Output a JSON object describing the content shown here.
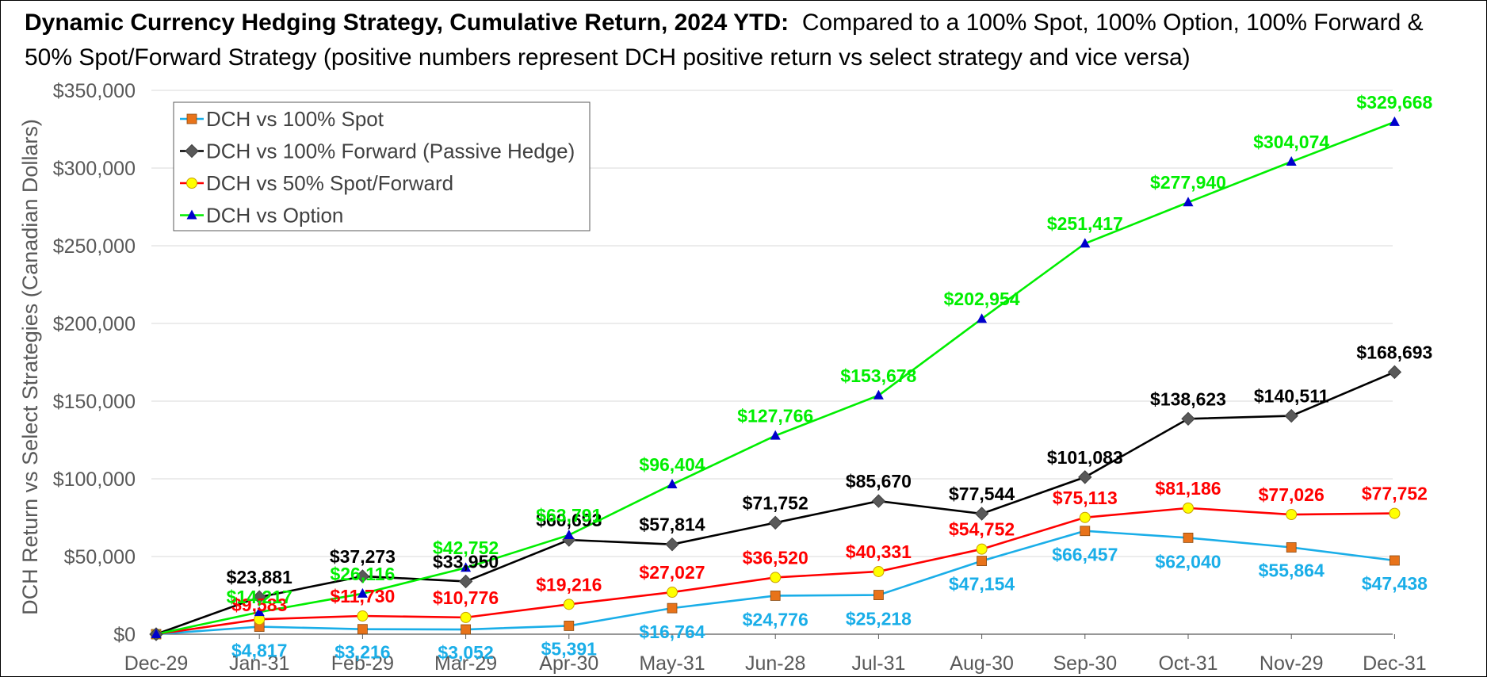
{
  "title": {
    "bold": "Dynamic Currency Hedging Strategy, Cumulative Return, 2024 YTD:",
    "rest": "Compared to a 100% Spot, 100% Option, 100% Forward & 50% Spot/Forward Strategy (positive numbers represent DCH positive return vs select strategy and vice versa)"
  },
  "chart_data": {
    "type": "line",
    "title": "Dynamic Currency Hedging Strategy, Cumulative Return, 2024 YTD: Compared to a 100% Spot, 100% Option, 100% Forward & 50% Spot/Forward Strategy (positive numbers represent DCH positive return vs select strategy and vice versa)",
    "xlabel": "",
    "ylabel": "DCH Return vs Select Strategies (Canadian Dollars)",
    "categories": [
      "Dec-29",
      "Jan-31",
      "Feb-29",
      "Mar-29",
      "Apr-30",
      "May-31",
      "Jun-28",
      "Jul-31",
      "Aug-30",
      "Sep-30",
      "Oct-31",
      "Nov-29",
      "Dec-31"
    ],
    "ylim": [
      0,
      350000
    ],
    "yticks": [
      0,
      50000,
      100000,
      150000,
      200000,
      250000,
      300000,
      350000
    ],
    "ytick_labels": [
      "$0",
      "$50,000",
      "$100,000",
      "$150,000",
      "$200,000",
      "$250,000",
      "$300,000",
      "$350,000"
    ],
    "grid": "horizontal",
    "legend_position": "top-left",
    "series": [
      {
        "name": "DCH vs 100% Spot",
        "color": "#1AAEE8",
        "marker": "square",
        "marker_color": "#E8731A",
        "label_color": "#1AAEE8",
        "values": [
          0,
          4817,
          3216,
          3052,
          5391,
          16764,
          24776,
          25218,
          47154,
          66457,
          62040,
          55864,
          47438
        ],
        "labels": [
          "",
          "$4,817",
          "$3,216",
          "$3,052",
          "$5,391",
          "$16,764",
          "$24,776",
          "$25,218",
          "$47,154",
          "$66,457",
          "$62,040",
          "$55,864",
          "$47,438"
        ]
      },
      {
        "name": "DCH vs 100% Forward (Passive Hedge)",
        "color": "#000000",
        "marker": "diamond",
        "marker_color": "#595959",
        "label_color": "#000000",
        "values": [
          0,
          23881,
          37273,
          33950,
          60693,
          57814,
          71752,
          85670,
          77544,
          101083,
          138623,
          140511,
          168693
        ],
        "labels": [
          "",
          "$23,881",
          "$37,273",
          "$33,950",
          "$60,693",
          "$57,814",
          "$71,752",
          "$85,670",
          "$77,544",
          "$101,083",
          "$138,623",
          "$140,511",
          "$168,693"
        ]
      },
      {
        "name": "DCH vs 50% Spot/Forward",
        "color": "#FF0000",
        "marker": "circle",
        "marker_color": "#FFFF00",
        "label_color": "#FF0000",
        "values": [
          0,
          9583,
          11730,
          10776,
          19216,
          27027,
          36520,
          40331,
          54752,
          75113,
          81186,
          77026,
          77752
        ],
        "labels": [
          "",
          "$9,583",
          "$11,730",
          "$10,776",
          "$19,216",
          "$27,027",
          "$36,520",
          "$40,331",
          "$54,752",
          "$75,113",
          "$81,186",
          "$77,026",
          "$77,752"
        ]
      },
      {
        "name": "DCH vs Option",
        "color": "#00EE00",
        "marker": "triangle",
        "marker_color": "#0000CC",
        "label_color": "#00EE00",
        "values": [
          0,
          14217,
          26116,
          42752,
          63791,
          96404,
          127766,
          153678,
          202954,
          251417,
          277940,
          304074,
          329668
        ],
        "labels": [
          "",
          "$14,217",
          "$26,116",
          "$42,752",
          "$63,791",
          "$96,404",
          "$127,766",
          "$153,678",
          "$202,954",
          "$251,417",
          "$277,940",
          "$304,074",
          "$329,668"
        ]
      }
    ]
  }
}
